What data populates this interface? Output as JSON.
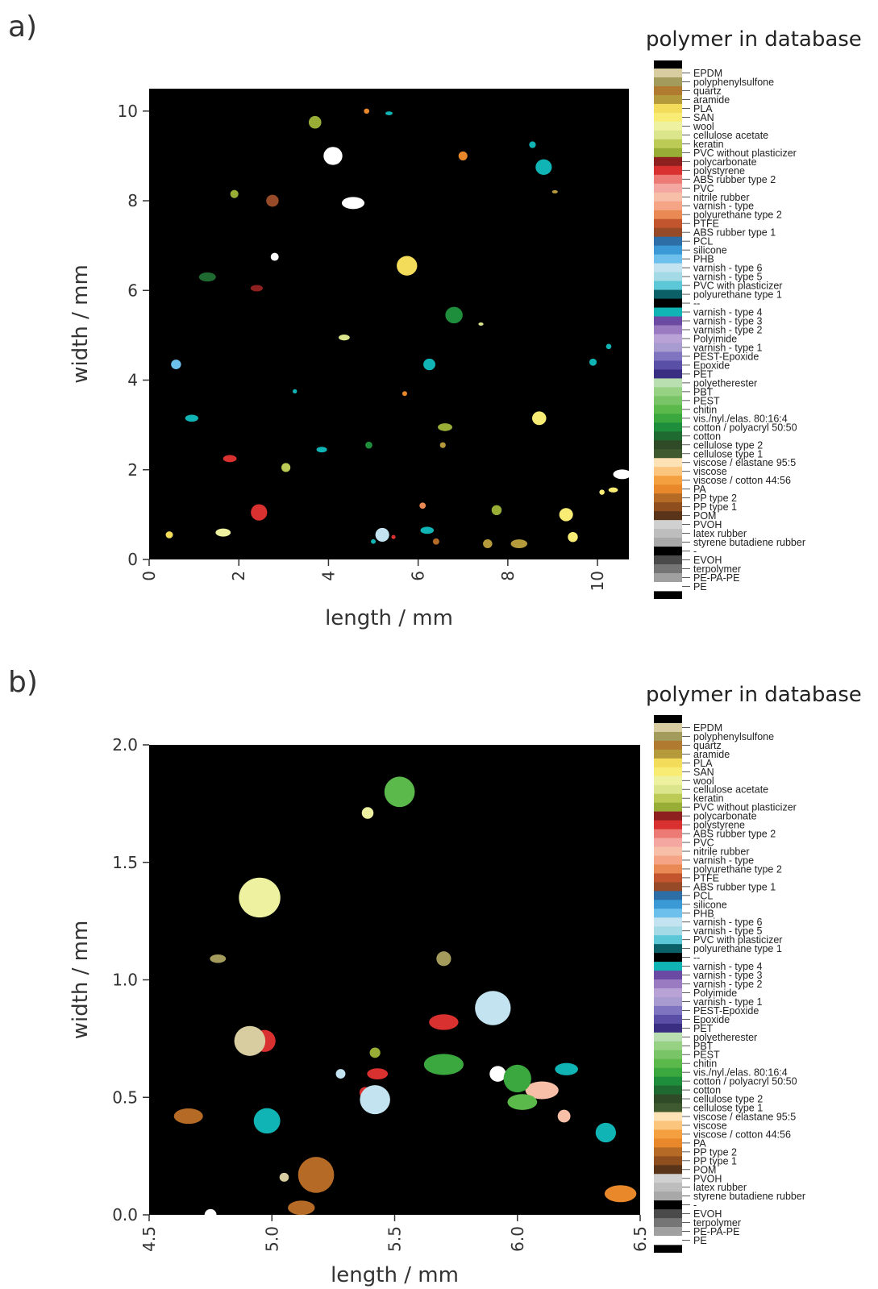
{
  "chart_data": [
    {
      "panel_label": "a)",
      "type": "heatmap",
      "xlabel": "length / mm",
      "ylabel": "width / mm",
      "xlim": [
        0,
        10.7
      ],
      "ylim": [
        0,
        10.5
      ],
      "xticks": [
        0,
        2,
        4,
        6,
        8,
        10
      ],
      "yticks": [
        0,
        2,
        4,
        6,
        8,
        10
      ],
      "xtick_labels": [
        "0",
        "2",
        "4",
        "6",
        "8",
        "10"
      ],
      "ytick_labels": [
        "0",
        "2",
        "4",
        "6",
        "8",
        "10"
      ],
      "background": "#000000",
      "legend_title": "polymer in database",
      "particles": [
        {
          "x": 3.25,
          "y": 3.75,
          "class": "varnish - type 4"
        },
        {
          "x": 6.25,
          "y": 4.35,
          "class": "varnish - type 4"
        },
        {
          "x": 3.85,
          "y": 2.45,
          "class": "varnish - type 4"
        },
        {
          "x": 5.2,
          "y": 0.55,
          "class": "varnish - type 6"
        },
        {
          "x": 5.0,
          "y": 0.4,
          "class": "varnish - type 4"
        },
        {
          "x": 6.2,
          "y": 0.65,
          "class": "varnish - type 4"
        },
        {
          "x": 9.45,
          "y": 0.5,
          "class": "SAN"
        },
        {
          "x": 8.7,
          "y": 3.15,
          "class": "SAN"
        },
        {
          "x": 10.35,
          "y": 1.55,
          "class": "SAN"
        },
        {
          "x": 10.1,
          "y": 1.5,
          "class": "SAN"
        },
        {
          "x": 9.3,
          "y": 1.0,
          "class": "SAN"
        },
        {
          "x": 1.65,
          "y": 0.6,
          "class": "wool"
        },
        {
          "x": 6.55,
          "y": 2.55,
          "class": "aramide"
        },
        {
          "x": 7.55,
          "y": 0.35,
          "class": "aramide"
        },
        {
          "x": 1.8,
          "y": 2.25,
          "class": "polystyrene"
        },
        {
          "x": 2.45,
          "y": 1.05,
          "class": "polystyrene"
        },
        {
          "x": 5.45,
          "y": 0.5,
          "class": "polystyrene"
        },
        {
          "x": 2.4,
          "y": 6.05,
          "class": "polycarbonate"
        },
        {
          "x": 2.8,
          "y": 6.75,
          "class": "PE"
        },
        {
          "x": 4.1,
          "y": 9.0,
          "class": "PE"
        },
        {
          "x": 5.35,
          "y": 9.95,
          "class": "varnish - type 4"
        },
        {
          "x": 8.55,
          "y": 9.25,
          "class": "varnish - type 4"
        },
        {
          "x": 8.8,
          "y": 8.75,
          "class": "varnish - type 4"
        },
        {
          "x": 0.95,
          "y": 3.15,
          "class": "varnish - type 4"
        },
        {
          "x": 10.25,
          "y": 4.75,
          "class": "varnish - type 4"
        },
        {
          "x": 9.9,
          "y": 4.4,
          "class": "varnish - type 4"
        },
        {
          "x": 10.55,
          "y": 1.9,
          "class": "PE"
        },
        {
          "x": 3.7,
          "y": 9.75,
          "class": "PVC without plasticizer"
        },
        {
          "x": 4.85,
          "y": 10.0,
          "class": "PA"
        },
        {
          "x": 6.6,
          "y": 2.95,
          "class": "PVC without plasticizer"
        },
        {
          "x": 4.9,
          "y": 2.55,
          "class": "cotton / polyacryl 50:50"
        },
        {
          "x": 6.8,
          "y": 5.45,
          "class": "cotton / polyacryl 50:50"
        },
        {
          "x": 9.05,
          "y": 8.2,
          "class": "aramide"
        },
        {
          "x": 7.0,
          "y": 9.0,
          "class": "PA"
        },
        {
          "x": 2.75,
          "y": 8.0,
          "class": "ABS rubber type 1"
        },
        {
          "x": 1.3,
          "y": 6.3,
          "class": "cotton"
        },
        {
          "x": 6.1,
          "y": 1.2,
          "class": "polyurethane type 2"
        },
        {
          "x": 6.4,
          "y": 0.4,
          "class": "PP type 2"
        },
        {
          "x": 8.25,
          "y": 0.35,
          "class": "aramide"
        },
        {
          "x": 7.75,
          "y": 1.1,
          "class": "PVC without plasticizer"
        },
        {
          "x": 0.45,
          "y": 0.55,
          "class": "PLA"
        },
        {
          "x": 4.35,
          "y": 4.95,
          "class": "cellulose acetate"
        },
        {
          "x": 3.05,
          "y": 2.05,
          "class": "keratin"
        },
        {
          "x": 5.75,
          "y": 6.55,
          "class": "PLA"
        },
        {
          "x": 7.4,
          "y": 5.25,
          "class": "cellulose acetate"
        },
        {
          "x": 1.9,
          "y": 8.15,
          "class": "PVC without plasticizer"
        },
        {
          "x": 0.6,
          "y": 4.35,
          "class": "PHB"
        },
        {
          "x": 4.55,
          "y": 7.95,
          "class": "PE"
        },
        {
          "x": 5.7,
          "y": 3.7,
          "class": "PA"
        }
      ],
      "polymer_classes": [
        {
          "name": "EPDM",
          "color": "#d8cda0"
        },
        {
          "name": "polyphenylsulfone",
          "color": "#a39b5c"
        },
        {
          "name": "quartz",
          "color": "#b07a30"
        },
        {
          "name": "aramide",
          "color": "#b59a3c"
        },
        {
          "name": "PLA",
          "color": "#f2dc5a"
        },
        {
          "name": "SAN",
          "color": "#f8ec75"
        },
        {
          "name": "wool",
          "color": "#eef2a0"
        },
        {
          "name": "cellulose acetate",
          "color": "#dbe68c"
        },
        {
          "name": "keratin",
          "color": "#bccb55"
        },
        {
          "name": "PVC without plasticizer",
          "color": "#97ad36"
        },
        {
          "name": "polycarbonate",
          "color": "#8e2020"
        },
        {
          "name": "polystyrene",
          "color": "#d93030"
        },
        {
          "name": "ABS rubber type 2",
          "color": "#ec7a75"
        },
        {
          "name": "PVC",
          "color": "#f4a6a0"
        },
        {
          "name": "nitrile rubber",
          "color": "#f7bfa8"
        },
        {
          "name": "varnish - type",
          "color": "#f5a585"
        },
        {
          "name": "polyurethane type 2",
          "color": "#e98a55"
        },
        {
          "name": "PTFE",
          "color": "#c2552e"
        },
        {
          "name": "ABS rubber type 1",
          "color": "#964a28"
        },
        {
          "name": "PCL",
          "color": "#2e6ea6"
        },
        {
          "name": "silicone",
          "color": "#3b9ad6"
        },
        {
          "name": "PHB",
          "color": "#6ec0ec"
        },
        {
          "name": "varnish - type 6",
          "color": "#c3e3f0"
        },
        {
          "name": "varnish - type 5",
          "color": "#a4d9e6"
        },
        {
          "name": "PVC with plasticizer",
          "color": "#5cc7d6"
        },
        {
          "name": "polyurethane type 1",
          "color": "#0b6068"
        },
        {
          "name": "--",
          "color": "#000000"
        },
        {
          "name": "varnish - type 4",
          "color": "#10b4b4"
        },
        {
          "name": "varnish - type 3",
          "color": "#6a4aa2"
        },
        {
          "name": "varnish - type 2",
          "color": "#9a7ac0"
        },
        {
          "name": "Polyimide",
          "color": "#b9a3d6"
        },
        {
          "name": "varnish - type 1",
          "color": "#a89bd0"
        },
        {
          "name": "PEST-Epoxide",
          "color": "#7f74c0"
        },
        {
          "name": "Epoxide",
          "color": "#5a4fa6"
        },
        {
          "name": "PET",
          "color": "#3a2e82"
        },
        {
          "name": "polyetherester",
          "color": "#b9deb0"
        },
        {
          "name": "PBT",
          "color": "#96d184"
        },
        {
          "name": "PEST",
          "color": "#79c466"
        },
        {
          "name": "chitin",
          "color": "#5ab94a"
        },
        {
          "name": "vis./nyl./elas. 80:16:4",
          "color": "#3aa83e"
        },
        {
          "name": "cotton / polyacryl 50:50",
          "color": "#1e8e3c"
        },
        {
          "name": "cotton",
          "color": "#1f6a30"
        },
        {
          "name": "cellulose type 2",
          "color": "#2e4a26"
        },
        {
          "name": "cellulose type 1",
          "color": "#3e5a2e"
        },
        {
          "name": "viscose / elastane 95:5",
          "color": "#fde2b6"
        },
        {
          "name": "viscose",
          "color": "#fbc57e"
        },
        {
          "name": "viscose / cotton 44:56",
          "color": "#f5a040"
        },
        {
          "name": "PA",
          "color": "#e8882a"
        },
        {
          "name": "PP type 2",
          "color": "#b56a26"
        },
        {
          "name": "PP type 1",
          "color": "#8e4e1e"
        },
        {
          "name": "POM",
          "color": "#5a3418"
        },
        {
          "name": "PVOH",
          "color": "#d0d0d0"
        },
        {
          "name": "latex rubber",
          "color": "#bdbdbd"
        },
        {
          "name": "styrene butadiene rubber",
          "color": "#a8a8a8"
        },
        {
          "name": "-",
          "color": "#000000"
        },
        {
          "name": "EVOH",
          "color": "#4a4a4a"
        },
        {
          "name": "terpolymer",
          "color": "#757575"
        },
        {
          "name": "PE-PA-PE",
          "color": "#a0a0a0"
        },
        {
          "name": "PE",
          "color": "#ffffff"
        }
      ]
    },
    {
      "panel_label": "b)",
      "type": "heatmap",
      "xlabel": "length / mm",
      "ylabel": "width / mm",
      "xlim": [
        4.5,
        6.5
      ],
      "ylim": [
        0.0,
        2.0
      ],
      "xticks": [
        4.5,
        5.0,
        5.5,
        6.0,
        6.5
      ],
      "yticks": [
        0.0,
        0.5,
        1.0,
        1.5,
        2.0
      ],
      "xtick_labels": [
        "4.5",
        "5.0",
        "5.5",
        "6.0",
        "6.5"
      ],
      "ytick_labels": [
        "0.0",
        "0.5",
        "1.0",
        "1.5",
        "2.0"
      ],
      "background": "#000000",
      "legend_title": "polymer in database",
      "particles": [
        {
          "x": 5.28,
          "y": 0.6,
          "class": "varnish - type 6"
        },
        {
          "x": 4.98,
          "y": 0.4,
          "class": "varnish - type 4"
        },
        {
          "x": 6.2,
          "y": 0.62,
          "class": "varnish - type 4"
        },
        {
          "x": 5.52,
          "y": 1.8,
          "class": "chitin"
        },
        {
          "x": 5.42,
          "y": 0.69,
          "class": "PVC without plasticizer"
        },
        {
          "x": 5.7,
          "y": 0.82,
          "class": "polystyrene"
        },
        {
          "x": 4.97,
          "y": 0.74,
          "class": "polystyrene"
        },
        {
          "x": 4.91,
          "y": 0.74,
          "class": "EPDM"
        },
        {
          "x": 5.43,
          "y": 0.6,
          "class": "polystyrene"
        },
        {
          "x": 5.38,
          "y": 0.52,
          "class": "polystyrene"
        },
        {
          "x": 5.42,
          "y": 0.49,
          "class": "varnish - type 6"
        },
        {
          "x": 6.1,
          "y": 0.53,
          "class": "nitrile rubber"
        },
        {
          "x": 6.19,
          "y": 0.42,
          "class": "nitrile rubber"
        },
        {
          "x": 6.36,
          "y": 0.35,
          "class": "varnish - type 4"
        },
        {
          "x": 6.02,
          "y": 0.48,
          "class": "chitin"
        },
        {
          "x": 5.18,
          "y": 0.17,
          "class": "PP type 2"
        },
        {
          "x": 5.05,
          "y": 0.16,
          "class": "EPDM"
        },
        {
          "x": 5.12,
          "y": 0.03,
          "class": "PP type 2"
        },
        {
          "x": 4.91,
          "y": 1.36,
          "class": "EPDM"
        },
        {
          "x": 4.95,
          "y": 1.35,
          "class": "wool"
        },
        {
          "x": 4.78,
          "y": 1.09,
          "class": "polyphenylsulfone"
        },
        {
          "x": 5.7,
          "y": 1.09,
          "class": "polyphenylsulfone"
        },
        {
          "x": 5.9,
          "y": 0.88,
          "class": "varnish - type 6"
        },
        {
          "x": 4.66,
          "y": 0.42,
          "class": "PP type 2"
        },
        {
          "x": 5.39,
          "y": 1.71,
          "class": "wool"
        },
        {
          "x": 5.92,
          "y": 0.6,
          "class": "PE"
        },
        {
          "x": 5.7,
          "y": 0.64,
          "class": "vis./nyl./elas. 80:16:4"
        },
        {
          "x": 6.0,
          "y": 0.58,
          "class": "vis./nyl./elas. 80:16:4"
        },
        {
          "x": 4.75,
          "y": 0.0,
          "class": "PE"
        },
        {
          "x": 6.42,
          "y": 0.09,
          "class": "PA"
        }
      ],
      "polymer_classes": [
        {
          "name": "EPDM",
          "color": "#d8cda0"
        },
        {
          "name": "polyphenylsulfone",
          "color": "#a39b5c"
        },
        {
          "name": "quartz",
          "color": "#b07a30"
        },
        {
          "name": "aramide",
          "color": "#b59a3c"
        },
        {
          "name": "PLA",
          "color": "#f2dc5a"
        },
        {
          "name": "SAN",
          "color": "#f8ec75"
        },
        {
          "name": "wool",
          "color": "#eef2a0"
        },
        {
          "name": "cellulose acetate",
          "color": "#dbe68c"
        },
        {
          "name": "keratin",
          "color": "#bccb55"
        },
        {
          "name": "PVC without plasticizer",
          "color": "#97ad36"
        },
        {
          "name": "polycarbonate",
          "color": "#8e2020"
        },
        {
          "name": "polystyrene",
          "color": "#d93030"
        },
        {
          "name": "ABS rubber type 2",
          "color": "#ec7a75"
        },
        {
          "name": "PVC",
          "color": "#f4a6a0"
        },
        {
          "name": "nitrile rubber",
          "color": "#f7bfa8"
        },
        {
          "name": "varnish - type",
          "color": "#f5a585"
        },
        {
          "name": "polyurethane type 2",
          "color": "#e98a55"
        },
        {
          "name": "PTFE",
          "color": "#c2552e"
        },
        {
          "name": "ABS rubber type 1",
          "color": "#964a28"
        },
        {
          "name": "PCL",
          "color": "#2e6ea6"
        },
        {
          "name": "silicone",
          "color": "#3b9ad6"
        },
        {
          "name": "PHB",
          "color": "#6ec0ec"
        },
        {
          "name": "varnish - type 6",
          "color": "#c3e3f0"
        },
        {
          "name": "varnish - type 5",
          "color": "#a4d9e6"
        },
        {
          "name": "PVC with plasticizer",
          "color": "#5cc7d6"
        },
        {
          "name": "polyurethane type 1",
          "color": "#0b6068"
        },
        {
          "name": "--",
          "color": "#000000"
        },
        {
          "name": "varnish - type 4",
          "color": "#10b4b4"
        },
        {
          "name": "varnish - type 3",
          "color": "#6a4aa2"
        },
        {
          "name": "varnish - type 2",
          "color": "#9a7ac0"
        },
        {
          "name": "Polyimide",
          "color": "#b9a3d6"
        },
        {
          "name": "varnish - type 1",
          "color": "#a89bd0"
        },
        {
          "name": "PEST-Epoxide",
          "color": "#7f74c0"
        },
        {
          "name": "Epoxide",
          "color": "#5a4fa6"
        },
        {
          "name": "PET",
          "color": "#3a2e82"
        },
        {
          "name": "polyetherester",
          "color": "#b9deb0"
        },
        {
          "name": "PBT",
          "color": "#96d184"
        },
        {
          "name": "PEST",
          "color": "#79c466"
        },
        {
          "name": "chitin",
          "color": "#5ab94a"
        },
        {
          "name": "vis./nyl./elas. 80:16:4",
          "color": "#3aa83e"
        },
        {
          "name": "cotton / polyacryl 50:50",
          "color": "#1e8e3c"
        },
        {
          "name": "cotton",
          "color": "#1f6a30"
        },
        {
          "name": "cellulose type 2",
          "color": "#2e4a26"
        },
        {
          "name": "cellulose type 1",
          "color": "#3e5a2e"
        },
        {
          "name": "viscose / elastane 95:5",
          "color": "#fde2b6"
        },
        {
          "name": "viscose",
          "color": "#fbc57e"
        },
        {
          "name": "viscose / cotton 44:56",
          "color": "#f5a040"
        },
        {
          "name": "PA",
          "color": "#e8882a"
        },
        {
          "name": "PP type 2",
          "color": "#b56a26"
        },
        {
          "name": "PP type 1",
          "color": "#8e4e1e"
        },
        {
          "name": "POM",
          "color": "#5a3418"
        },
        {
          "name": "PVOH",
          "color": "#d0d0d0"
        },
        {
          "name": "latex rubber",
          "color": "#bdbdbd"
        },
        {
          "name": "styrene butadiene rubber",
          "color": "#a8a8a8"
        },
        {
          "name": "-",
          "color": "#000000"
        },
        {
          "name": "EVOH",
          "color": "#4a4a4a"
        },
        {
          "name": "terpolymer",
          "color": "#757575"
        },
        {
          "name": "PE-PA-PE",
          "color": "#a0a0a0"
        },
        {
          "name": "PE",
          "color": "#ffffff"
        }
      ]
    }
  ]
}
